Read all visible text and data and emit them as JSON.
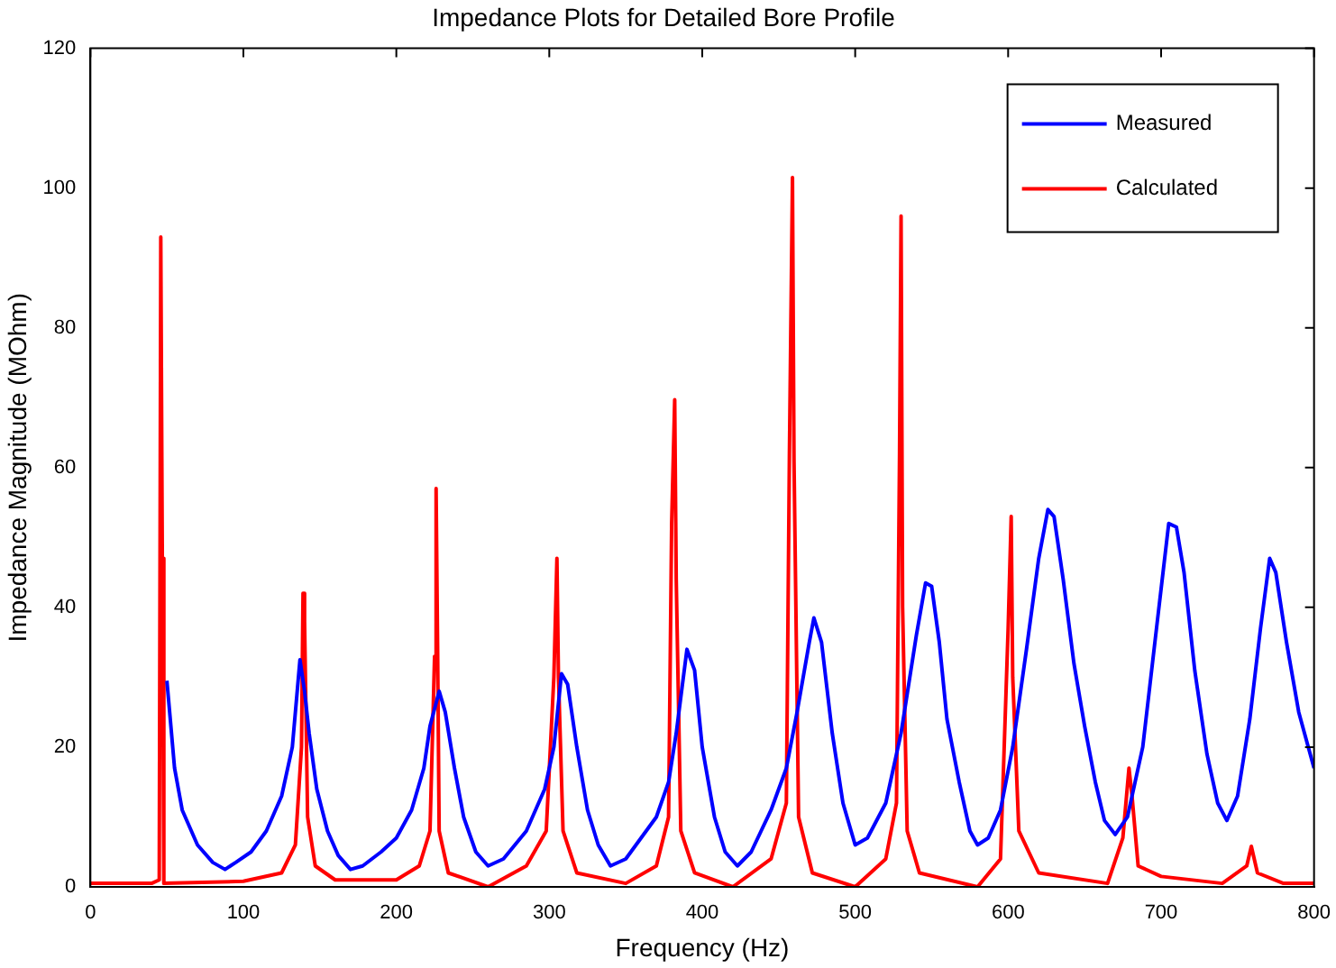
{
  "chart_data": {
    "type": "line",
    "title": "Impedance Plots for Detailed Bore Profile",
    "xlabel": "Frequency (Hz)",
    "ylabel": "Impedance Magnitude (MOhm)",
    "xlim": [
      0,
      800
    ],
    "xticks": [
      0,
      100,
      200,
      300,
      400,
      500,
      600,
      700,
      800
    ],
    "ylim": [
      0,
      120
    ],
    "yticks": [
      0,
      20,
      40,
      60,
      80,
      100,
      120
    ],
    "grid": false,
    "legend": "top right",
    "marker": "none",
    "line_style": "solid",
    "series": [
      {
        "name": "Measured",
        "color": "#0000ff",
        "x": [
          50,
          55,
          60,
          70,
          80,
          88,
          95,
          105,
          115,
          125,
          132,
          137,
          140,
          143,
          148,
          155,
          162,
          170,
          178,
          190,
          200,
          210,
          218,
          222,
          228,
          232,
          238,
          244,
          252,
          260,
          270,
          285,
          297,
          303,
          308,
          312,
          318,
          325,
          332,
          340,
          350,
          360,
          370,
          378,
          383,
          390,
          395,
          400,
          408,
          415,
          423,
          432,
          445,
          455,
          462,
          470,
          473,
          478,
          485,
          492,
          500,
          508,
          520,
          530,
          540,
          546,
          550,
          555,
          560,
          568,
          575,
          580,
          587,
          595,
          603,
          612,
          620,
          626,
          630,
          636,
          643,
          650,
          657,
          663,
          670,
          678,
          688,
          697,
          705,
          710,
          715,
          722,
          730,
          737,
          743,
          750,
          758,
          765,
          771,
          775,
          782,
          790,
          800
        ],
        "values": [
          29.5,
          17,
          11,
          6,
          3.5,
          2.5,
          3.5,
          5,
          8,
          13,
          20,
          32.5,
          28,
          22,
          14,
          8,
          4.5,
          2.5,
          3,
          5,
          7,
          11,
          17,
          23,
          28,
          25,
          17,
          10,
          5,
          3,
          4,
          8,
          14,
          20,
          30.5,
          29,
          20,
          11,
          6,
          3,
          4,
          7,
          10,
          15,
          22,
          34,
          31,
          20,
          10,
          5,
          3,
          5,
          11,
          17,
          25,
          35,
          38.5,
          35,
          22,
          12,
          6,
          7,
          12,
          22,
          36,
          43.5,
          43,
          35,
          24,
          15,
          8,
          6,
          7,
          11,
          20,
          34,
          47,
          54,
          53,
          44,
          32,
          23,
          15,
          9.5,
          7.5,
          10,
          20,
          37,
          52,
          51.5,
          45,
          31,
          19,
          12,
          9.5,
          13,
          24,
          37,
          47,
          45,
          35,
          25,
          17
        ]
      },
      {
        "name": "Calculated",
        "color": "#ff0000",
        "x": [
          0,
          40,
          45,
          46,
          47,
          48,
          100,
          125,
          134,
          138,
          139,
          140,
          142,
          147,
          160,
          200,
          215,
          222,
          225,
          226,
          227,
          228,
          234,
          260,
          285,
          298,
          303,
          305,
          306,
          309,
          318,
          350,
          370,
          378,
          380,
          382,
          383,
          386,
          395,
          420,
          445,
          455,
          457,
          459,
          460,
          463,
          472,
          500,
          520,
          527,
          529,
          530,
          531,
          534,
          542,
          580,
          595,
          600,
          602,
          603,
          607,
          620,
          665,
          675,
          679,
          681,
          685,
          700,
          740,
          756,
          759,
          763,
          780,
          800
        ],
        "values": [
          0.5,
          0.5,
          1,
          93,
          47,
          0.5,
          0.8,
          2,
          6,
          20,
          42,
          38,
          10,
          3,
          1,
          1,
          3,
          8,
          33,
          57,
          34,
          8,
          2,
          0,
          3,
          8,
          30,
          47,
          30,
          8,
          2,
          0.5,
          3,
          10,
          52,
          69.7,
          44,
          8,
          2,
          0,
          4,
          12,
          62,
          101.5,
          61,
          10,
          2,
          0,
          4,
          12,
          62,
          96,
          40,
          8,
          2,
          0,
          4,
          37,
          53,
          30,
          8,
          2,
          0.5,
          7,
          17,
          13,
          3,
          1.5,
          0.5,
          3,
          5.8,
          2,
          0.5,
          0.5
        ]
      }
    ]
  }
}
